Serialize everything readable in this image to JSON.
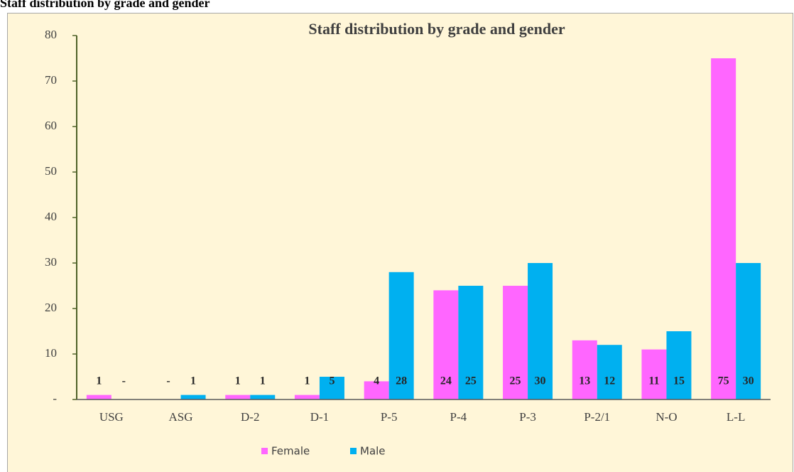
{
  "heading": "Staff distribution by grade and gender",
  "chart_data": {
    "type": "bar",
    "title": "Staff distribution by grade and gender",
    "categories": [
      "USG",
      "ASG",
      "D-2",
      "D-1",
      "P-5",
      "P-4",
      "P-3",
      "P-2/1",
      "N-O",
      "L-L"
    ],
    "series": [
      {
        "name": "Female",
        "color": "#ff66ff",
        "values": [
          1,
          0,
          1,
          1,
          4,
          24,
          25,
          13,
          11,
          75
        ],
        "value_labels": [
          "1",
          "-",
          "1",
          "1",
          "4",
          "24",
          "25",
          "13",
          "11",
          "75"
        ]
      },
      {
        "name": "Male",
        "color": "#00b0f0",
        "values": [
          0,
          1,
          1,
          5,
          28,
          25,
          30,
          12,
          15,
          30
        ],
        "value_labels": [
          "-",
          "1",
          "1",
          "5",
          "28",
          "25",
          "30",
          "12",
          "15",
          "30"
        ]
      }
    ],
    "ylim": [
      0,
      80
    ],
    "yticks": [
      {
        "value": 0,
        "label": "-"
      },
      10,
      20,
      30,
      40,
      50,
      60,
      70,
      80
    ],
    "legend": "bottom"
  }
}
